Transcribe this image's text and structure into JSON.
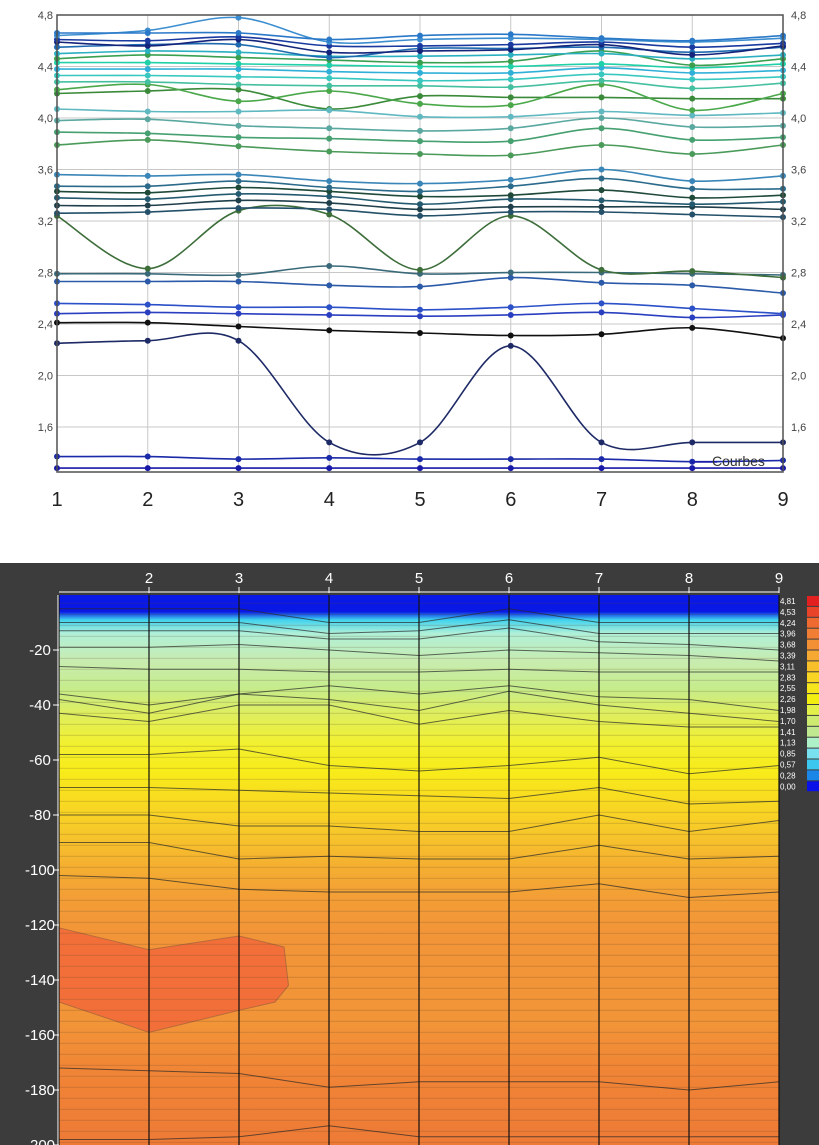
{
  "chart_data": [
    {
      "type": "line",
      "title": "",
      "xlabel": "",
      "ylabel": "",
      "x": [
        1,
        2,
        3,
        4,
        5,
        6,
        7,
        8,
        9
      ],
      "xlim": [
        1,
        9
      ],
      "ylim": [
        1.25,
        4.8
      ],
      "y_ticks": [
        "1,6",
        "2,0",
        "2,4",
        "2,8",
        "3,2",
        "3,6",
        "4,0",
        "4,4",
        "4,8"
      ],
      "y_tick_values": [
        1.6,
        2.0,
        2.4,
        2.8,
        3.2,
        3.6,
        4.0,
        4.4,
        4.8
      ],
      "x_ticks": [
        "1",
        "2",
        "3",
        "4",
        "5",
        "6",
        "7",
        "8",
        "9"
      ],
      "grid": true,
      "legend_label": "Courbes",
      "legend_position": "bottom-right",
      "series": [
        {
          "color": "#1a1aa8",
          "values": [
            1.28,
            1.28,
            1.28,
            1.28,
            1.28,
            1.28,
            1.28,
            1.28,
            1.28
          ]
        },
        {
          "color": "#1b2aa8",
          "values": [
            1.37,
            1.37,
            1.35,
            1.36,
            1.35,
            1.35,
            1.35,
            1.33,
            1.34
          ]
        },
        {
          "color": "#1e2a66",
          "values": [
            2.25,
            2.27,
            2.27,
            1.48,
            1.48,
            2.23,
            1.48,
            1.48,
            1.48
          ]
        },
        {
          "color": "#101010",
          "values": [
            2.41,
            2.41,
            2.38,
            2.35,
            2.33,
            2.31,
            2.32,
            2.37,
            2.29
          ]
        },
        {
          "color": "#2a3fc0",
          "values": [
            2.48,
            2.49,
            2.48,
            2.47,
            2.46,
            2.47,
            2.49,
            2.45,
            2.47
          ]
        },
        {
          "color": "#2b50c8",
          "values": [
            2.56,
            2.55,
            2.53,
            2.53,
            2.51,
            2.53,
            2.56,
            2.52,
            2.48
          ]
        },
        {
          "color": "#2b5aa8",
          "values": [
            2.73,
            2.73,
            2.73,
            2.7,
            2.69,
            2.76,
            2.72,
            2.7,
            2.64
          ]
        },
        {
          "color": "#3a6a7a",
          "values": [
            2.79,
            2.79,
            2.78,
            2.85,
            2.79,
            2.8,
            2.8,
            2.79,
            2.78
          ]
        },
        {
          "color": "#3d6e3a",
          "values": [
            3.24,
            2.83,
            3.28,
            3.25,
            2.82,
            3.24,
            2.82,
            2.81,
            2.76
          ]
        },
        {
          "color": "#24506a",
          "values": [
            3.26,
            3.27,
            3.3,
            3.29,
            3.24,
            3.27,
            3.27,
            3.25,
            3.23
          ]
        },
        {
          "color": "#1f3f4a",
          "values": [
            3.32,
            3.32,
            3.36,
            3.34,
            3.29,
            3.31,
            3.31,
            3.31,
            3.29
          ]
        },
        {
          "color": "#245a70",
          "values": [
            3.38,
            3.37,
            3.41,
            3.39,
            3.33,
            3.37,
            3.36,
            3.33,
            3.35
          ]
        },
        {
          "color": "#1f4a3a",
          "values": [
            3.43,
            3.42,
            3.46,
            3.43,
            3.39,
            3.4,
            3.44,
            3.38,
            3.4
          ]
        },
        {
          "color": "#2b6a8a",
          "values": [
            3.47,
            3.47,
            3.51,
            3.46,
            3.43,
            3.47,
            3.53,
            3.45,
            3.45
          ]
        },
        {
          "color": "#3a86b8",
          "values": [
            3.56,
            3.55,
            3.56,
            3.51,
            3.49,
            3.52,
            3.6,
            3.51,
            3.55
          ]
        },
        {
          "color": "#4a9a5a",
          "values": [
            3.79,
            3.83,
            3.78,
            3.74,
            3.72,
            3.71,
            3.79,
            3.72,
            3.79
          ]
        },
        {
          "color": "#46a070",
          "values": [
            3.89,
            3.88,
            3.85,
            3.84,
            3.82,
            3.82,
            3.92,
            3.83,
            3.85
          ]
        },
        {
          "color": "#5aa8a0",
          "values": [
            3.98,
            3.99,
            3.94,
            3.92,
            3.9,
            3.92,
            4.0,
            3.93,
            3.94
          ]
        },
        {
          "color": "#3a8a3a",
          "values": [
            4.19,
            4.21,
            4.22,
            4.07,
            4.17,
            4.16,
            4.16,
            4.15,
            4.15
          ]
        },
        {
          "color": "#60b8c0",
          "values": [
            4.07,
            4.05,
            4.05,
            4.06,
            4.01,
            4.01,
            4.05,
            4.02,
            4.04
          ]
        },
        {
          "color": "#4aa84a",
          "values": [
            4.22,
            4.26,
            4.13,
            4.21,
            4.11,
            4.1,
            4.26,
            4.06,
            4.19
          ]
        },
        {
          "color": "#44c0a0",
          "values": [
            4.28,
            4.28,
            4.26,
            4.25,
            4.25,
            4.24,
            4.29,
            4.23,
            4.27
          ]
        },
        {
          "color": "#38c8c0",
          "values": [
            4.33,
            4.33,
            4.32,
            4.31,
            4.29,
            4.3,
            4.34,
            4.3,
            4.32
          ]
        },
        {
          "color": "#30b0d8",
          "values": [
            4.38,
            4.38,
            4.38,
            4.36,
            4.35,
            4.35,
            4.39,
            4.35,
            4.37
          ]
        },
        {
          "color": "#20d0a8",
          "values": [
            4.43,
            4.43,
            4.42,
            4.41,
            4.4,
            4.4,
            4.42,
            4.39,
            4.42
          ]
        },
        {
          "color": "#3aa050",
          "values": [
            4.46,
            4.49,
            4.47,
            4.45,
            4.43,
            4.44,
            4.52,
            4.41,
            4.46
          ]
        },
        {
          "color": "#2ab0c0",
          "values": [
            4.5,
            4.52,
            4.51,
            4.48,
            4.48,
            4.49,
            4.5,
            4.46,
            4.49
          ]
        },
        {
          "color": "#1e6ab0",
          "values": [
            4.55,
            4.57,
            4.57,
            4.47,
            4.54,
            4.54,
            4.55,
            4.51,
            4.55
          ]
        },
        {
          "color": "#14247a",
          "values": [
            4.59,
            4.56,
            4.61,
            4.51,
            4.52,
            4.53,
            4.57,
            4.49,
            4.56
          ]
        },
        {
          "color": "#1a3aa0",
          "values": [
            4.61,
            4.6,
            4.63,
            4.56,
            4.56,
            4.57,
            4.59,
            4.55,
            4.58
          ]
        },
        {
          "color": "#3c8ed0",
          "values": [
            4.64,
            4.68,
            4.78,
            4.59,
            4.61,
            4.62,
            4.61,
            4.59,
            4.62
          ]
        },
        {
          "color": "#2a78c8",
          "values": [
            4.66,
            4.66,
            4.66,
            4.61,
            4.64,
            4.65,
            4.62,
            4.6,
            4.64
          ]
        }
      ]
    },
    {
      "type": "heatmap",
      "title": "",
      "x_ticks": [
        "2",
        "3",
        "4",
        "5",
        "6",
        "7",
        "8",
        "9"
      ],
      "x_tick_values": [
        2,
        3,
        4,
        5,
        6,
        7,
        8,
        9
      ],
      "xlim": [
        1,
        9
      ],
      "y_ticks": [
        "-20",
        "-40",
        "-60",
        "-80",
        "-100",
        "-120",
        "-140",
        "-160",
        "-180",
        "-200"
      ],
      "y_tick_values": [
        -20,
        -40,
        -60,
        -80,
        -100,
        -120,
        -140,
        -160,
        -180,
        -200
      ],
      "ylim": [
        -200,
        0
      ],
      "legend_position": "right",
      "legend_levels": [
        "4,81",
        "4,53",
        "4,24",
        "3,96",
        "3,68",
        "3,39",
        "3,11",
        "2,83",
        "2,55",
        "2,26",
        "1,98",
        "1,70",
        "1,41",
        "1,13",
        "0,85",
        "0,57",
        "0,28",
        "0,00"
      ],
      "legend_colors": [
        "#e32020",
        "#e8442a",
        "#ee6a30",
        "#f17e34",
        "#f39036",
        "#f5a832",
        "#f7bf2a",
        "#f8d524",
        "#f6e41c",
        "#f2ee10",
        "#e2f04a",
        "#cdeb70",
        "#bfe890",
        "#aef0c8",
        "#78e0ee",
        "#3cc8ee",
        "#1a86e8",
        "#0a10e8"
      ],
      "contour_lines": [
        {
          "depths": [
            -5,
            -5,
            -5,
            -10,
            -10,
            -5,
            -10,
            -10,
            -10
          ]
        },
        {
          "depths": [
            -10,
            -10,
            -10,
            -14,
            -13,
            -9,
            -14,
            -14,
            -14
          ]
        },
        {
          "depths": [
            -13,
            -13,
            -13,
            -16,
            -16,
            -12,
            -17,
            -18,
            -20
          ]
        },
        {
          "depths": [
            -19,
            -19,
            -18,
            -20,
            -22,
            -20,
            -21,
            -22,
            -24
          ]
        },
        {
          "depths": [
            -26,
            -27,
            -27,
            -28,
            -28,
            -27,
            -28,
            -28,
            -28
          ]
        },
        {
          "depths": [
            -36,
            -40,
            -36,
            -33,
            -36,
            -33,
            -37,
            -38,
            -42
          ]
        },
        {
          "depths": [
            -38,
            -43,
            -36,
            -38,
            -42,
            -35,
            -40,
            -43,
            -46
          ]
        },
        {
          "depths": [
            -43,
            -46,
            -40,
            -40,
            -47,
            -42,
            -46,
            -48,
            -48
          ]
        },
        {
          "depths": [
            -58,
            -58,
            -56,
            -62,
            -64,
            -62,
            -59,
            -65,
            -62
          ]
        },
        {
          "depths": [
            -70,
            -70,
            -71,
            -72,
            -73,
            -74,
            -70,
            -76,
            -75
          ]
        },
        {
          "depths": [
            -80,
            -80,
            -84,
            -84,
            -86,
            -86,
            -80,
            -86,
            -82
          ]
        },
        {
          "depths": [
            -90,
            -90,
            -96,
            -95,
            -96,
            -96,
            -91,
            -96,
            -95
          ]
        },
        {
          "depths": [
            -102,
            -103,
            -107,
            -108,
            -108,
            -108,
            -105,
            -110,
            -108
          ]
        },
        {
          "depths": [
            -172,
            -173,
            -174,
            -179,
            -177,
            -177,
            -177,
            -180,
            -177
          ]
        },
        {
          "depths": [
            -198,
            -198,
            -197,
            -193,
            -197,
            -197,
            -197,
            -197,
            -197
          ]
        }
      ],
      "region_fill": "#f26f3a"
    }
  ]
}
